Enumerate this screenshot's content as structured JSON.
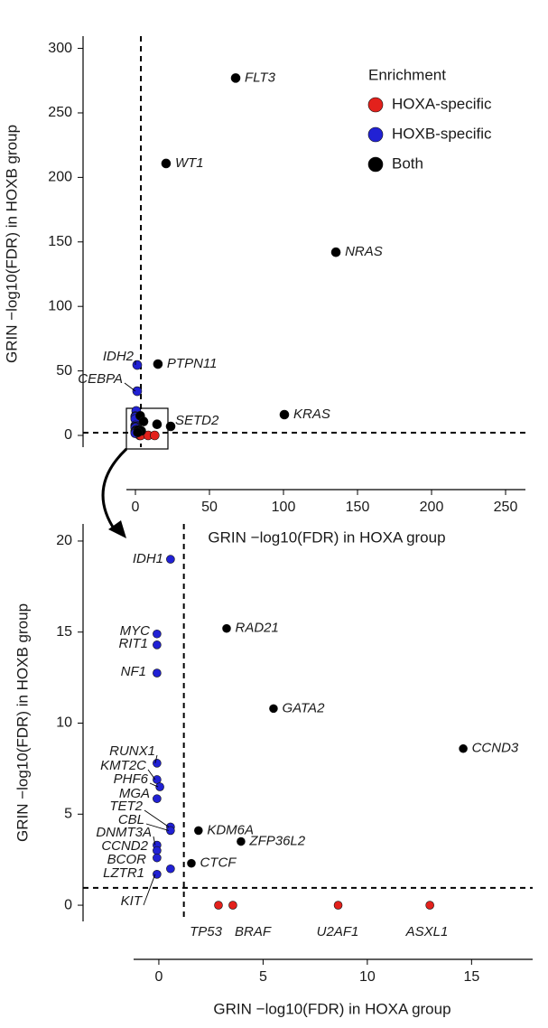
{
  "chart_data": [
    {
      "type": "scatter",
      "xlabel": "GRIN −log10(FDR) in HOXA group",
      "ylabel": "GRIN −log10(FDR) in HOXB group",
      "xlim": [
        -6.1,
        263.4
      ],
      "ylim": [
        -9.1,
        309.5
      ],
      "xticks": [
        0,
        50,
        100,
        150,
        200,
        250
      ],
      "yticks": [
        0,
        50,
        100,
        150,
        200,
        250,
        300
      ],
      "vline": 3.7,
      "hline": 2.1,
      "legend_title": "Enrichment",
      "legend": "upper right",
      "series": [
        {
          "name": "HOXA-specific",
          "color": "#e3211c",
          "x": [
            2.86,
            3.55,
            8.6,
            13.0
          ],
          "values": [
            0,
            0,
            0,
            0
          ],
          "labels": [
            null,
            null,
            null,
            null
          ]
        },
        {
          "name": "HOXB-specific",
          "color": "#2121d4",
          "x": [
            1.2,
            1.2,
            0.56,
            -0.09,
            -0.09,
            -0.09,
            -0.09,
            -0.09,
            0.05,
            -0.09,
            0.56,
            0.56,
            -0.09,
            -0.09,
            -0.09,
            0.56,
            -0.09
          ],
          "values": [
            54.6,
            34.3,
            19.0,
            14.9,
            14.3,
            12.75,
            7.8,
            6.9,
            6.5,
            5.85,
            4.3,
            4.1,
            3.3,
            3.0,
            2.6,
            2.0,
            1.7
          ],
          "labels": [
            "IDH2",
            "CEBPA",
            null,
            null,
            null,
            null,
            null,
            null,
            null,
            null,
            null,
            null,
            null,
            null,
            null,
            null,
            null
          ]
        },
        {
          "name": "Both",
          "color": "#000000",
          "x": [
            67.7,
            20.7,
            135.4,
            15.2,
            100.6,
            23.8,
            3.25,
            5.5,
            14.6,
            1.9,
            3.94,
            1.56
          ],
          "values": [
            277,
            210.8,
            142,
            55.3,
            16.1,
            7.0,
            15.2,
            10.8,
            8.6,
            4.1,
            3.5,
            2.3
          ],
          "labels": [
            "FLT3",
            "WT1",
            "NRAS",
            "PTPN11",
            "KRAS",
            "SETD2",
            null,
            null,
            null,
            null,
            null,
            null
          ]
        }
      ]
    },
    {
      "type": "scatter",
      "xlabel": "GRIN −log10(FDR) in HOXA group",
      "ylabel": "GRIN −log10(FDR) in HOXB group",
      "xlim": [
        -1.21,
        17.93
      ],
      "ylim": [
        -0.89,
        20.94
      ],
      "xticks": [
        0,
        5,
        10,
        15
      ],
      "yticks": [
        0,
        5,
        10,
        15,
        20
      ],
      "vline": 1.2,
      "hline": 0.95,
      "series": [
        {
          "color": "#e3211c",
          "x": [
            2.86,
            3.55,
            8.6,
            13.0
          ],
          "values": [
            0,
            0,
            0,
            0
          ],
          "labels": [
            "TP53",
            "BRAF",
            "U2AF1",
            "ASXL1"
          ]
        },
        {
          "color": "#2121d4",
          "x": [
            0.56,
            -0.09,
            -0.09,
            -0.09,
            -0.09,
            -0.09,
            0.05,
            -0.09,
            0.56,
            0.56,
            -0.09,
            -0.09,
            -0.09,
            0.56,
            -0.09
          ],
          "values": [
            19.0,
            14.9,
            14.3,
            12.75,
            7.8,
            6.9,
            6.5,
            5.85,
            4.3,
            4.1,
            3.3,
            3.0,
            2.6,
            2.0,
            1.7
          ],
          "labels": [
            "IDH1",
            "MYC",
            "RIT1",
            "NF1",
            "RUNX1",
            "KMT2C",
            "PHF6",
            "MGA",
            "TET2",
            "CBL",
            "DNMT3A",
            "CCND2",
            "BCOR",
            "LZTR1",
            "KIT"
          ]
        },
        {
          "color": "#000000",
          "x": [
            3.25,
            5.5,
            14.6,
            1.9,
            3.94,
            1.56
          ],
          "values": [
            15.2,
            10.8,
            8.6,
            4.1,
            3.5,
            2.3
          ],
          "labels": [
            "RAD21",
            "GATA2",
            "CCND3",
            "KDM6A",
            "ZFP36L2",
            "CTCF"
          ]
        }
      ]
    }
  ]
}
